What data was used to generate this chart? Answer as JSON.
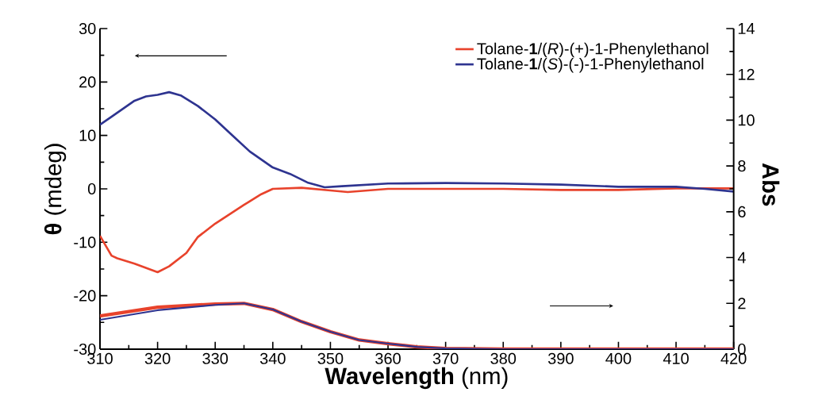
{
  "chart_data": {
    "type": "line",
    "xlabel": "**Wavelength** (nm)",
    "ylabel": "**θ** (mdeg)",
    "y2label": "Abs",
    "xlim": [
      310,
      420
    ],
    "xticks": [
      310,
      320,
      330,
      340,
      350,
      360,
      370,
      380,
      390,
      400,
      410,
      420
    ],
    "ylim": [
      -30,
      30
    ],
    "yticks": [
      -30,
      -20,
      -10,
      0,
      10,
      20,
      30
    ],
    "y2lim": [
      0,
      14
    ],
    "y2ticks": [
      0,
      2,
      4,
      6,
      8,
      10,
      12,
      14
    ],
    "legend": "top right",
    "grid": false,
    "marker": "none",
    "line_style": "solid",
    "series": [
      {
        "name": "Tolane-**1**/(*R*)-(+)-1-Phenylethanol",
        "color": "#e8432c",
        "x": [
          310,
          312,
          313,
          316,
          320,
          322,
          325,
          327,
          330,
          335,
          338,
          340,
          345,
          350,
          353,
          360,
          380,
          390,
          400,
          410,
          420
        ],
        "values": [
          -8.8,
          -12.5,
          -13,
          -14,
          -15.6,
          -14.5,
          -12,
          -9,
          -6.5,
          -3,
          -1,
          0,
          0.2,
          -0.3,
          -0.6,
          0,
          0,
          -0.2,
          -0.2,
          0.1,
          0.1
        ]
      },
      {
        "name": "Tolane-**1**/(*S*)-(-)-1-Phenylethanol",
        "color": "#2e3490",
        "x": [
          310,
          312,
          314,
          316,
          318,
          320,
          322,
          324,
          327,
          330,
          333,
          336,
          340,
          343,
          346,
          349,
          352,
          360,
          370,
          380,
          390,
          400,
          410,
          415,
          420
        ],
        "values": [
          12,
          13.5,
          15,
          16.5,
          17.3,
          17.6,
          18.1,
          17.5,
          15.5,
          13,
          10,
          7,
          4,
          2.8,
          1.2,
          0.3,
          0.5,
          1,
          1.1,
          1,
          0.8,
          0.4,
          0.4,
          0,
          -0.5
        ]
      },
      {
        "color": "#e8432c",
        "axis": "y2",
        "x": [
          310,
          320,
          330,
          335,
          340,
          345,
          350,
          355,
          360,
          365,
          370,
          380,
          390,
          400,
          410,
          420
        ],
        "values": [
          1.45,
          1.83,
          1.97,
          2,
          1.73,
          1.2,
          0.76,
          0.4,
          0.24,
          0.1,
          0.03,
          0,
          0,
          0,
          0,
          0
        ]
      },
      {
        "color": "#2e3490",
        "axis": "y2",
        "x": [
          310,
          320,
          330,
          335,
          340,
          345,
          350,
          355,
          360,
          365,
          370,
          380,
          390,
          400,
          410,
          420
        ],
        "values": [
          1.28,
          1.7,
          1.93,
          2,
          1.73,
          1.2,
          0.76,
          0.4,
          0.24,
          0.1,
          0.03,
          0,
          0,
          0,
          0,
          0
        ]
      }
    ]
  }
}
